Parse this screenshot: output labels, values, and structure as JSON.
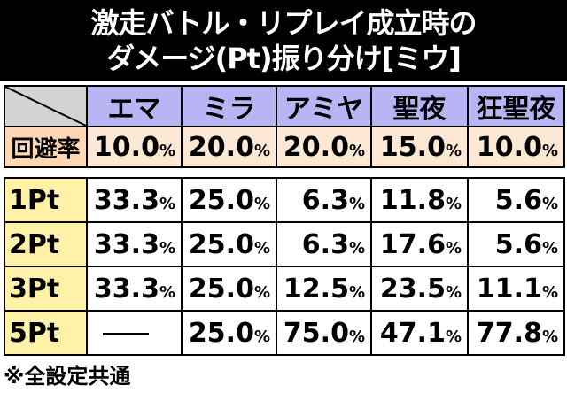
{
  "title": {
    "line1": "激走バトル・リプレイ成立時の",
    "line2": "ダメージ(Pt)振り分け[ミウ]"
  },
  "columns": [
    "エマ",
    "ミラ",
    "アミヤ",
    "聖夜",
    "狂聖夜"
  ],
  "evasion": {
    "label": "回避率",
    "values": [
      {
        "num": "10.0",
        "unit": "%"
      },
      {
        "num": "20.0",
        "unit": "%"
      },
      {
        "num": "20.0",
        "unit": "%"
      },
      {
        "num": "15.0",
        "unit": "%"
      },
      {
        "num": "10.0",
        "unit": "%"
      }
    ]
  },
  "rows": [
    {
      "label": "1Pt",
      "values": [
        {
          "num": "33.3",
          "unit": "%"
        },
        {
          "num": "25.0",
          "unit": "%"
        },
        {
          "num": "6.3",
          "unit": "%"
        },
        {
          "num": "11.8",
          "unit": "%"
        },
        {
          "num": "5.6",
          "unit": "%"
        }
      ]
    },
    {
      "label": "2Pt",
      "values": [
        {
          "num": "33.3",
          "unit": "%"
        },
        {
          "num": "25.0",
          "unit": "%"
        },
        {
          "num": "6.3",
          "unit": "%"
        },
        {
          "num": "17.6",
          "unit": "%"
        },
        {
          "num": "5.6",
          "unit": "%"
        }
      ]
    },
    {
      "label": "3Pt",
      "values": [
        {
          "num": "33.3",
          "unit": "%"
        },
        {
          "num": "25.0",
          "unit": "%"
        },
        {
          "num": "12.5",
          "unit": "%"
        },
        {
          "num": "23.5",
          "unit": "%"
        },
        {
          "num": "11.1",
          "unit": "%"
        }
      ]
    },
    {
      "label": "5Pt",
      "values": [
        {
          "num": "",
          "unit": ""
        },
        {
          "num": "25.0",
          "unit": "%"
        },
        {
          "num": "75.0",
          "unit": "%"
        },
        {
          "num": "47.1",
          "unit": "%"
        },
        {
          "num": "77.8",
          "unit": "%"
        }
      ]
    }
  ],
  "note": "※全設定共通",
  "colors": {
    "header_bg": "#b9b5f4",
    "row_label_bg": "#fff2a8",
    "evasion_label_bg": "#ffd7b5",
    "evasion_bg": "#fde8d6",
    "corner_bg": "#d3d3d3"
  }
}
